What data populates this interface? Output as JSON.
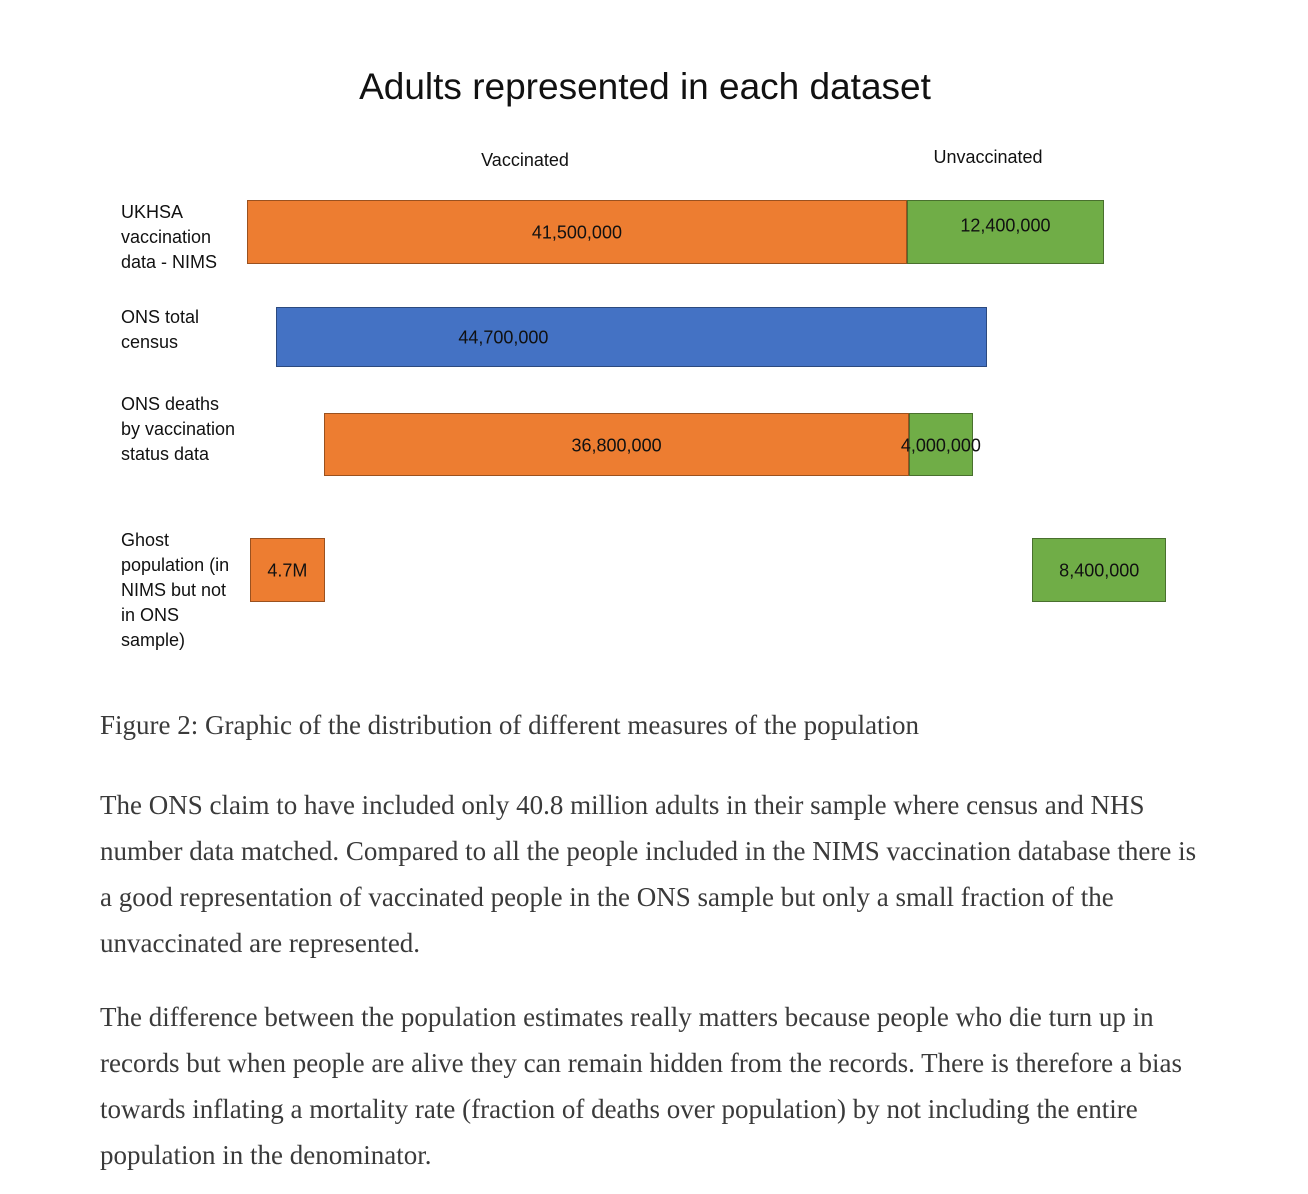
{
  "chart_data": {
    "type": "bar",
    "orientation": "horizontal-stacked",
    "title": "Adults represented in each dataset",
    "column_labels": [
      "Vaccinated",
      "Unvaccinated"
    ],
    "colors": {
      "vaccinated": "#ED7D31",
      "unvaccinated": "#70AD47",
      "total": "#4472C4"
    },
    "rows": [
      {
        "label": "UKHSA vaccination data - NIMS",
        "segments": [
          {
            "series": "Vaccinated",
            "value": 41500000,
            "label": "41,500,000",
            "color": "#ED7D31"
          },
          {
            "series": "Unvaccinated",
            "value": 12400000,
            "label": "12,400,000",
            "color": "#70AD47"
          }
        ]
      },
      {
        "label": "ONS total census",
        "segments": [
          {
            "series": "Total",
            "value": 44700000,
            "label": "44,700,000",
            "color": "#4472C4"
          }
        ]
      },
      {
        "label": "ONS deaths by vaccination status data",
        "segments": [
          {
            "series": "Vaccinated",
            "value": 36800000,
            "label": "36,800,000",
            "color": "#ED7D31"
          },
          {
            "series": "Unvaccinated",
            "value": 4000000,
            "label": "4,000,000",
            "color": "#70AD47"
          }
        ]
      },
      {
        "label": "Ghost population (in NIMS but not in ONS sample)",
        "segments": [
          {
            "series": "Vaccinated",
            "value": 4700000,
            "label": "4.7M",
            "color": "#ED7D31"
          },
          {
            "series": "Unvaccinated",
            "value": 8400000,
            "label": "8,400,000",
            "color": "#70AD47"
          }
        ]
      }
    ]
  },
  "caption": "Figure 2: Graphic of the distribution of different measures of the population",
  "paragraphs": [
    "The ONS claim to have included only 40.8 million adults in their sample where census and NHS number data matched. Compared to all the people included in the NIMS vaccination database there is a good representation of vaccinated people in the ONS sample but only a small fraction of the unvaccinated are represented.",
    "The difference between the population estimates really matters because people who die turn up in records but when people are alive they can remain hidden from the records. There is therefore a bias towards inflating a mortality rate (fraction of deaths over population) by not including the entire population in the denominator."
  ]
}
